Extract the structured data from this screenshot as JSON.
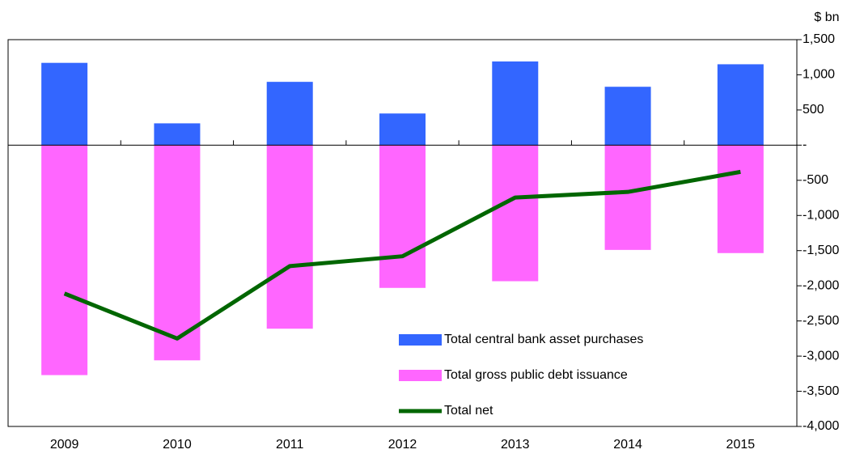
{
  "chart_data": {
    "type": "bar",
    "y_axis_label": "$ bn",
    "categories": [
      "2009",
      "2010",
      "2011",
      "2012",
      "2013",
      "2014",
      "2015"
    ],
    "series": [
      {
        "name": "Total central bank asset purchases",
        "type": "bar",
        "color": "#3366ff",
        "values": [
          1170,
          310,
          900,
          450,
          1190,
          830,
          1150
        ]
      },
      {
        "name": "Total gross public debt issuance",
        "type": "bar",
        "color": "#ff66ff",
        "values": [
          -3270,
          -3060,
          -2610,
          -2030,
          -1935,
          -1490,
          -1535
        ]
      },
      {
        "name": "Total net",
        "type": "line",
        "color": "#006600",
        "values": [
          -2110,
          -2750,
          -1720,
          -1580,
          -745,
          -665,
          -380
        ]
      }
    ],
    "ylim": [
      -4000,
      1500
    ],
    "yticks": [
      {
        "value": 1500,
        "label": "1,500"
      },
      {
        "value": 1000,
        "label": "1,000"
      },
      500,
      {
        "value": 0,
        "label": "-"
      },
      -500,
      {
        "value": -1000,
        "label": "-1,000"
      },
      {
        "value": -1500,
        "label": "-1,500"
      },
      {
        "value": -2000,
        "label": "-2,000"
      },
      {
        "value": -2500,
        "label": "-2,500"
      },
      {
        "value": -3000,
        "label": "-3,000"
      },
      {
        "value": -3500,
        "label": "-3,500"
      },
      {
        "value": -4000,
        "label": "-4,000"
      }
    ],
    "y_axis_side": "right",
    "legend": "lower center"
  }
}
